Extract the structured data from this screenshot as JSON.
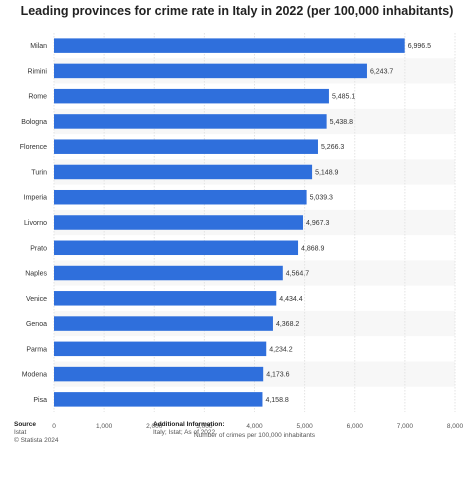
{
  "chart_data": {
    "type": "bar",
    "orientation": "horizontal",
    "title": "Leading provinces for crime rate in Italy in 2022 (per 100,000 inhabitants)",
    "categories": [
      "Milan",
      "Rimini",
      "Rome",
      "Bologna",
      "Florence",
      "Turin",
      "Imperia",
      "Livorno",
      "Prato",
      "Naples",
      "Venice",
      "Genoa",
      "Parma",
      "Modena",
      "Pisa"
    ],
    "values": [
      6996.5,
      6243.7,
      5485.1,
      5438.8,
      5266.3,
      5148.9,
      5039.3,
      4967.3,
      4868.9,
      4564.7,
      4434.4,
      4368.2,
      4234.2,
      4173.6,
      4158.8
    ],
    "value_labels": [
      "6,996.5",
      "6,243.7",
      "5,485.1",
      "5,438.8",
      "5,266.3",
      "5,148.9",
      "5,039.3",
      "4,967.3",
      "4,868.9",
      "4,564.7",
      "4,434.4",
      "4,368.2",
      "4,234.2",
      "4,173.6",
      "4,158.8"
    ],
    "xlabel": "Number of crimes per 100,000 inhabitants",
    "ylabel": "",
    "xlim": [
      0,
      8000
    ],
    "xticks": [
      0,
      1000,
      2000,
      3000,
      4000,
      5000,
      6000,
      7000,
      8000
    ],
    "xtick_labels": [
      "0",
      "1,000",
      "2,000",
      "3,000",
      "4,000",
      "5,000",
      "6,000",
      "7,000",
      "8,000"
    ],
    "grid": true,
    "bar_color": "#2f6fdc"
  },
  "footer": {
    "source_heading": "Source",
    "source_lines": [
      "Istat",
      "© Statista 2024"
    ],
    "info_heading": "Additional Information:",
    "info_lines": [
      "Italy; Istat; As of 2022"
    ]
  }
}
